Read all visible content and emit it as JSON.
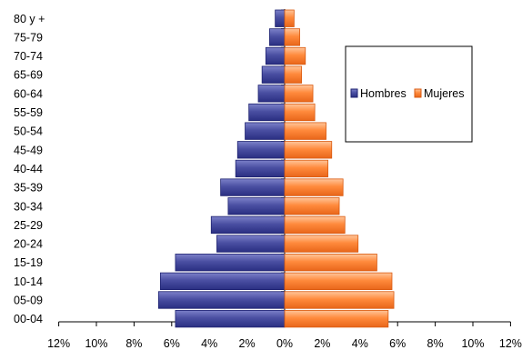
{
  "chart_data": {
    "type": "bar",
    "orientation": "horizontal-population-pyramid",
    "categories": [
      "80 y +",
      "75-79",
      "70-74",
      "65-69",
      "60-64",
      "55-59",
      "50-54",
      "45-49",
      "40-44",
      "35-39",
      "30-34",
      "25-29",
      "20-24",
      "15-19",
      "10-14",
      "05-09",
      "00-04"
    ],
    "series": [
      {
        "name": "Hombres",
        "color": "#5a5fae",
        "values": [
          0.5,
          0.8,
          1.0,
          1.2,
          1.4,
          1.9,
          2.1,
          2.5,
          2.6,
          3.4,
          3.0,
          3.9,
          3.6,
          5.8,
          6.6,
          6.7,
          5.8
        ]
      },
      {
        "name": "Mujeres",
        "color": "#ff8a3c",
        "values": [
          0.5,
          0.8,
          1.1,
          0.9,
          1.5,
          1.6,
          2.2,
          2.5,
          2.3,
          3.1,
          2.9,
          3.2,
          3.9,
          4.9,
          5.7,
          5.8,
          5.5
        ]
      }
    ],
    "x_ticks": [
      "12%",
      "10%",
      "8%",
      "6%",
      "4%",
      "2%",
      "0%",
      "2%",
      "4%",
      "6%",
      "8%",
      "10%",
      "12%"
    ],
    "xlim": [
      -12,
      12
    ],
    "grid": false,
    "legend_position": "right"
  }
}
